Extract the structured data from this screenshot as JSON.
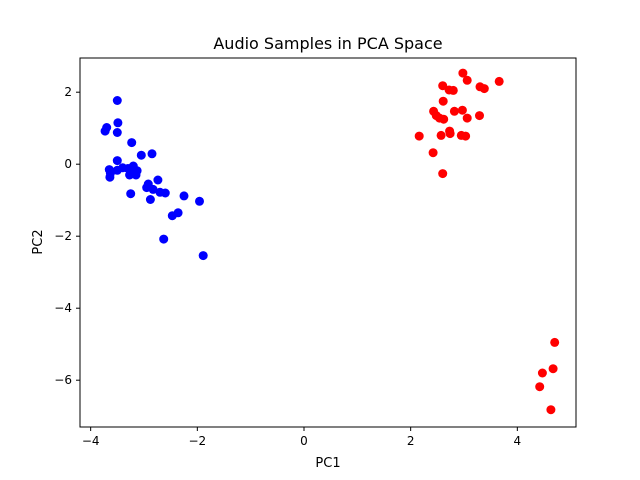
{
  "chart_data": {
    "type": "scatter",
    "title": "Audio Samples in PCA Space",
    "xlabel": "PC1",
    "ylabel": "PC2",
    "xlim": [
      -4.2,
      5.1
    ],
    "ylim": [
      -7.3,
      2.95
    ],
    "xticks": [
      -4,
      -2,
      0,
      2,
      4
    ],
    "yticks": [
      2,
      0,
      -2,
      -4,
      -6
    ],
    "xtick_labels": [
      "−4",
      "−2",
      "0",
      "2",
      "4"
    ],
    "ytick_labels": [
      "2",
      "0",
      "−2",
      "−4",
      "−6"
    ],
    "grid": false,
    "legend": "none",
    "series": [
      {
        "color": "#0000ff",
        "points": [
          [
            -3.73,
            0.92
          ],
          [
            -3.7,
            1.02
          ],
          [
            -3.5,
            1.77
          ],
          [
            -3.49,
            1.15
          ],
          [
            -3.5,
            0.88
          ],
          [
            -3.23,
            0.6
          ],
          [
            -3.05,
            0.25
          ],
          [
            -2.85,
            0.29
          ],
          [
            -3.5,
            0.1
          ],
          [
            -3.65,
            -0.15
          ],
          [
            -3.63,
            -0.25
          ],
          [
            -3.64,
            -0.36
          ],
          [
            -3.5,
            -0.17
          ],
          [
            -3.4,
            -0.1
          ],
          [
            -3.3,
            -0.12
          ],
          [
            -3.2,
            -0.05
          ],
          [
            -3.15,
            -0.3
          ],
          [
            -3.22,
            -0.25
          ],
          [
            -3.13,
            -0.18
          ],
          [
            -3.27,
            -0.3
          ],
          [
            -2.95,
            -0.65
          ],
          [
            -2.92,
            -0.55
          ],
          [
            -2.83,
            -0.7
          ],
          [
            -2.74,
            -0.44
          ],
          [
            -2.7,
            -0.78
          ],
          [
            -2.6,
            -0.8
          ],
          [
            -2.88,
            -0.98
          ],
          [
            -3.25,
            -0.82
          ],
          [
            -2.25,
            -0.88
          ],
          [
            -1.96,
            -1.03
          ],
          [
            -2.36,
            -1.35
          ],
          [
            -2.47,
            -1.43
          ],
          [
            -2.63,
            -2.08
          ],
          [
            -1.89,
            -2.54
          ]
        ]
      },
      {
        "color": "#ff0000",
        "points": [
          [
            2.98,
            2.53
          ],
          [
            3.06,
            2.33
          ],
          [
            3.66,
            2.3
          ],
          [
            2.6,
            2.18
          ],
          [
            3.3,
            2.15
          ],
          [
            3.38,
            2.1
          ],
          [
            2.72,
            2.06
          ],
          [
            2.8,
            2.05
          ],
          [
            2.61,
            1.75
          ],
          [
            2.43,
            1.47
          ],
          [
            2.82,
            1.47
          ],
          [
            2.97,
            1.5
          ],
          [
            2.48,
            1.35
          ],
          [
            2.54,
            1.28
          ],
          [
            2.62,
            1.25
          ],
          [
            3.29,
            1.35
          ],
          [
            3.06,
            1.28
          ],
          [
            2.16,
            0.78
          ],
          [
            2.57,
            0.8
          ],
          [
            2.74,
            0.85
          ],
          [
            2.73,
            0.92
          ],
          [
            2.95,
            0.8
          ],
          [
            3.03,
            0.78
          ],
          [
            2.42,
            0.32
          ],
          [
            2.6,
            -0.26
          ],
          [
            4.7,
            -4.95
          ],
          [
            4.47,
            -5.8
          ],
          [
            4.67,
            -5.68
          ],
          [
            4.42,
            -6.18
          ],
          [
            4.63,
            -6.82
          ]
        ]
      }
    ]
  }
}
